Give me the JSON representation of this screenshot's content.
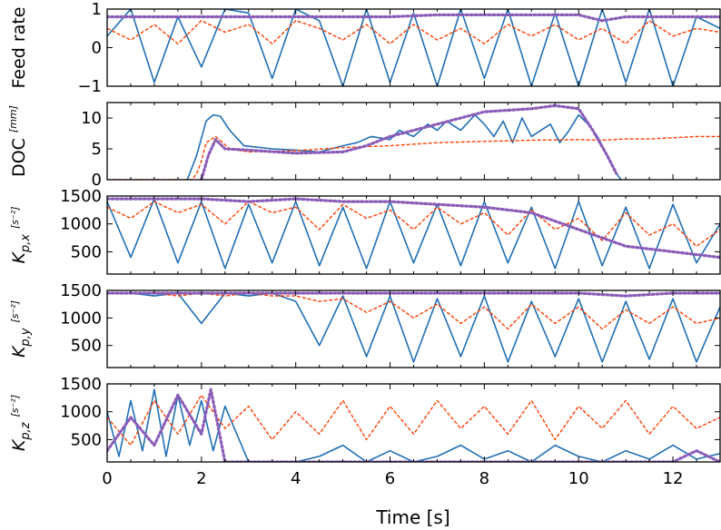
{
  "chart_data": {
    "type": "line",
    "x_axis": {
      "label": "Time [s]",
      "xlim": [
        0,
        13
      ],
      "ticks": [
        0,
        2,
        4,
        6,
        8,
        10,
        12
      ],
      "tick_labels": [
        "0",
        "2",
        "4",
        "6",
        "8",
        "10",
        "12"
      ]
    },
    "colors": {
      "series_1": "#1f6fb4",
      "series_2": "#ff3d00",
      "series_3": "#8a5cb8"
    },
    "panels": [
      {
        "ylabel": "Feed rate",
        "ylabel_unit": "",
        "ylim": [
          -1,
          1
        ],
        "yticks": [
          -1,
          0,
          1
        ],
        "ytick_labels": [
          "−1",
          "0",
          "1"
        ],
        "series": [
          {
            "style": "solid",
            "color": "#1f6fb4",
            "x": [
              0,
              0.5,
              1,
              1.5,
              2,
              2.5,
              3,
              3.5,
              4,
              4.5,
              5,
              5.5,
              6,
              6.5,
              7,
              7.5,
              8,
              8.5,
              9,
              9.5,
              10,
              10.5,
              11,
              11.5,
              12,
              12.5,
              13
            ],
            "y": [
              0.3,
              1,
              -0.9,
              0.8,
              -0.5,
              1,
              0.9,
              -0.8,
              1,
              0.7,
              -1,
              1,
              -0.9,
              0.9,
              -1,
              1,
              -0.8,
              1,
              -1,
              0.9,
              -1,
              1,
              -0.9,
              1,
              -1,
              0.8,
              0.5
            ]
          },
          {
            "style": "dashed",
            "color": "#ff3d00",
            "x": [
              0,
              0.5,
              1,
              1.5,
              2,
              2.5,
              3,
              3.5,
              4,
              4.5,
              5,
              5.5,
              6,
              6.5,
              7,
              7.5,
              8,
              8.5,
              9,
              9.5,
              10,
              10.5,
              11,
              11.5,
              12,
              12.5,
              13
            ],
            "y": [
              0.5,
              0.2,
              0.6,
              0.1,
              0.7,
              0.4,
              0.6,
              0.1,
              0.7,
              0.5,
              0.2,
              0.6,
              0.1,
              0.6,
              0.2,
              0.5,
              0.1,
              0.6,
              0.3,
              0.6,
              0.2,
              0.5,
              0.1,
              0.7,
              0.3,
              0.5,
              0.4
            ]
          },
          {
            "style": "dotted",
            "color": "#8a5cb8",
            "x": [
              0,
              1,
              2,
              3,
              4,
              5,
              6,
              7,
              8,
              9,
              10,
              10.5,
              11,
              12,
              13
            ],
            "y": [
              0.8,
              0.8,
              0.8,
              0.8,
              0.8,
              0.8,
              0.8,
              0.85,
              0.85,
              0.85,
              0.85,
              0.7,
              0.8,
              0.8,
              0.8
            ]
          }
        ]
      },
      {
        "ylabel": "DOC",
        "ylabel_unit": "[mm]",
        "ylim": [
          0,
          12.5
        ],
        "yticks": [
          0,
          5,
          10
        ],
        "ytick_labels": [
          "0",
          "5",
          "10"
        ],
        "series": [
          {
            "style": "solid",
            "color": "#1f6fb4",
            "x": [
              1.7,
              1.9,
              2.1,
              2.25,
              2.4,
              2.6,
              2.9,
              3.5,
              4.0,
              4.5,
              5.0,
              5.3,
              5.6,
              6.0,
              6.2,
              6.5,
              6.8,
              7.0,
              7.2,
              7.5,
              7.8,
              8.0,
              8.2,
              8.4,
              8.6,
              8.8,
              9.0,
              9.2,
              9.4,
              9.6,
              9.8,
              10.0,
              10.2,
              10.4,
              10.6,
              10.8,
              10.9
            ],
            "y": [
              0,
              4,
              9.5,
              10.5,
              10.3,
              8,
              5.5,
              5.0,
              4.8,
              4.5,
              5.5,
              6,
              7,
              6.5,
              8,
              7,
              9,
              8,
              9.5,
              8,
              10.5,
              9,
              7,
              9.5,
              6,
              10,
              7,
              8,
              9,
              6,
              8,
              10.5,
              9,
              7,
              4,
              1,
              0
            ]
          },
          {
            "style": "dashed",
            "color": "#ff3d00",
            "x": [
              0,
              1.8,
              1.9,
              2.0,
              2.1,
              2.3,
              2.6,
              3.0,
              4.0,
              5.0,
              6.0,
              7.0,
              8.0,
              9.0,
              10.0,
              10.5,
              11.0,
              11.5,
              12.0,
              12.5,
              13.0
            ],
            "y": [
              0,
              0,
              1,
              3,
              6,
              7,
              5,
              4.5,
              4.7,
              5.2,
              5.5,
              6.0,
              6.2,
              6.4,
              6.5,
              6.4,
              6.6,
              6.6,
              6.8,
              7.0,
              7.0
            ]
          },
          {
            "style": "dotted",
            "color": "#8a5cb8",
            "x": [
              2.0,
              2.15,
              2.3,
              2.5,
              3.0,
              4.0,
              5.0,
              5.5,
              6.0,
              7.0,
              8.0,
              9.0,
              9.5,
              10.0,
              10.3,
              10.6,
              10.8
            ],
            "y": [
              0,
              4,
              6.5,
              5.0,
              4.8,
              4.3,
              4.5,
              5.5,
              7.0,
              9.0,
              11.0,
              11.5,
              12.0,
              11.5,
              8.0,
              4.0,
              1.0
            ]
          }
        ]
      },
      {
        "ylabel": "K_p,x",
        "ylabel_unit": "[s⁻²]",
        "ylim": [
          100,
          1500
        ],
        "yticks": [
          500,
          1000,
          1500
        ],
        "ytick_labels": [
          "500",
          "1000",
          "1500"
        ],
        "series": [
          {
            "style": "solid",
            "color": "#1f6fb4",
            "x": [
              0,
              0.5,
              1,
              1.5,
              2,
              2.5,
              3,
              3.5,
              4,
              4.5,
              5,
              5.5,
              6,
              6.5,
              7,
              7.5,
              8,
              8.5,
              9,
              9.5,
              10,
              10.5,
              11,
              11.5,
              12,
              12.5,
              13
            ],
            "y": [
              1400,
              400,
              1450,
              300,
              1400,
              200,
              1350,
              300,
              1400,
              250,
              1300,
              200,
              1400,
              300,
              1350,
              250,
              1400,
              300,
              1300,
              200,
              1400,
              250,
              1300,
              200,
              1350,
              300,
              1000
            ]
          },
          {
            "style": "dashed",
            "color": "#ff3d00",
            "x": [
              0,
              0.5,
              1,
              1.5,
              2,
              2.5,
              3,
              3.5,
              4,
              4.5,
              5,
              5.5,
              6,
              6.5,
              7,
              7.5,
              8,
              8.5,
              9,
              9.5,
              10,
              10.5,
              11,
              11.5,
              12,
              12.5,
              13
            ],
            "y": [
              1300,
              1100,
              1400,
              1200,
              1350,
              1000,
              1400,
              1200,
              1300,
              900,
              1350,
              1100,
              1250,
              900,
              1300,
              1000,
              1200,
              800,
              1250,
              900,
              1100,
              700,
              1200,
              800,
              1000,
              600,
              900
            ]
          },
          {
            "style": "dotted",
            "color": "#8a5cb8",
            "x": [
              0,
              1,
              2,
              3,
              4,
              5,
              6,
              7,
              8,
              9,
              10,
              11,
              12,
              13
            ],
            "y": [
              1450,
              1450,
              1450,
              1400,
              1450,
              1400,
              1400,
              1350,
              1300,
              1200,
              900,
              600,
              500,
              400
            ]
          }
        ]
      },
      {
        "ylabel": "K_p,y",
        "ylabel_unit": "[s⁻²]",
        "ylim": [
          100,
          1500
        ],
        "yticks": [
          500,
          1000,
          1500
        ],
        "ytick_labels": [
          "500",
          "1000",
          "1500"
        ],
        "series": [
          {
            "style": "solid",
            "color": "#1f6fb4",
            "x": [
              0,
              0.5,
              1,
              1.5,
              2,
              2.5,
              3,
              3.5,
              4,
              4.5,
              5,
              5.5,
              6,
              6.5,
              7,
              7.5,
              8,
              8.5,
              9,
              9.5,
              10,
              10.5,
              11,
              11.5,
              12,
              12.5,
              13
            ],
            "y": [
              1450,
              1450,
              1400,
              1450,
              900,
              1450,
              1400,
              1450,
              1300,
              500,
              1400,
              300,
              1400,
              200,
              1350,
              300,
              1400,
              200,
              1300,
              300,
              1350,
              200,
              1300,
              250,
              1350,
              200,
              1200
            ]
          },
          {
            "style": "dashed",
            "color": "#ff3d00",
            "x": [
              0,
              0.5,
              1,
              1.5,
              2,
              2.5,
              3,
              3.5,
              4,
              4.5,
              5,
              5.5,
              6,
              6.5,
              7,
              7.5,
              8,
              8.5,
              9,
              9.5,
              10,
              10.5,
              11,
              11.5,
              12,
              12.5,
              13
            ],
            "y": [
              1450,
              1450,
              1450,
              1400,
              1450,
              1400,
              1450,
              1400,
              1400,
              1300,
              1350,
              1100,
              1300,
              1000,
              1250,
              900,
              1200,
              800,
              1250,
              900,
              1200,
              800,
              1150,
              900,
              1200,
              900,
              1000
            ]
          },
          {
            "style": "dotted",
            "color": "#8a5cb8",
            "x": [
              0,
              1,
              2,
              3,
              4,
              5,
              6,
              7,
              8,
              9,
              10,
              11,
              12,
              13
            ],
            "y": [
              1450,
              1450,
              1450,
              1450,
              1450,
              1450,
              1450,
              1450,
              1450,
              1450,
              1450,
              1400,
              1450,
              1450
            ]
          }
        ]
      },
      {
        "ylabel": "K_p,z",
        "ylabel_unit": "[s⁻²]",
        "ylim": [
          100,
          1500
        ],
        "yticks": [
          500,
          1000,
          1500
        ],
        "ytick_labels": [
          "500",
          "1000",
          "1500"
        ],
        "series": [
          {
            "style": "solid",
            "color": "#1f6fb4",
            "x": [
              0,
              0.25,
              0.5,
              0.75,
              1,
              1.25,
              1.5,
              1.75,
              2,
              2.25,
              2.5,
              3,
              4,
              4.5,
              5,
              5.5,
              6,
              6.5,
              7,
              7.5,
              8,
              8.5,
              9,
              9.5,
              10,
              10.5,
              11,
              11.5,
              12,
              12.5,
              13
            ],
            "y": [
              1000,
              200,
              1200,
              300,
              1400,
              200,
              1300,
              400,
              1200,
              300,
              1100,
              100,
              100,
              200,
              400,
              100,
              300,
              100,
              200,
              400,
              150,
              300,
              100,
              400,
              200,
              100,
              300,
              150,
              400,
              150,
              250
            ]
          },
          {
            "style": "dashed",
            "color": "#ff3d00",
            "x": [
              0,
              0.5,
              1,
              1.5,
              2,
              2.5,
              3,
              3.5,
              4,
              4.5,
              5,
              5.5,
              6,
              6.5,
              7,
              7.5,
              8,
              8.5,
              9,
              9.5,
              10,
              10.5,
              11,
              11.5,
              12,
              12.5,
              13
            ],
            "y": [
              900,
              400,
              1200,
              600,
              1300,
              700,
              1100,
              500,
              1000,
              600,
              1200,
              500,
              1100,
              600,
              1200,
              700,
              1100,
              600,
              1200,
              500,
              1100,
              700,
              1200,
              600,
              1100,
              700,
              900
            ]
          },
          {
            "style": "dotted",
            "color": "#8a5cb8",
            "x": [
              0,
              0.5,
              1,
              1.5,
              2,
              2.2,
              2.5,
              3,
              4,
              5,
              6,
              7,
              8,
              9,
              10,
              11,
              12,
              12.5,
              13
            ],
            "y": [
              300,
              900,
              400,
              1300,
              600,
              1400,
              100,
              100,
              100,
              100,
              100,
              100,
              100,
              100,
              100,
              100,
              100,
              300,
              100
            ]
          }
        ]
      }
    ]
  }
}
